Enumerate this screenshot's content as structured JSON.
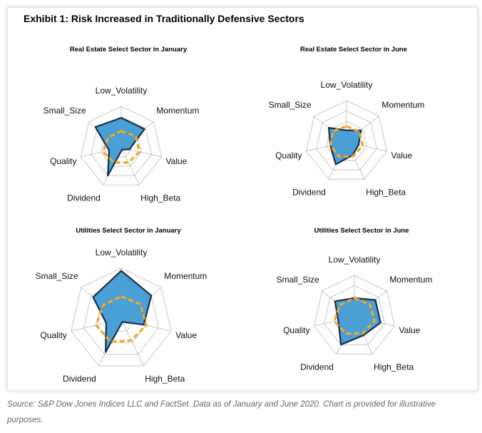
{
  "exhibit_title": "Exhibit 1: Risk Increased in Traditionally Defensive Sectors",
  "source_text": "Source: S&P Dow Jones Indices LLC and FactSet. Data as of January and June 2020. Chart is provided for illustrative purposes.",
  "colors": {
    "fill": "#4a9fd4",
    "outline": "#16314f",
    "benchmark": "#f5a623",
    "grid": "#c8c8c8"
  },
  "chart_data": [
    {
      "type": "radar",
      "title": "Real Estate Select Sector in January",
      "axes": [
        "Low_Volatility",
        "Momentum",
        "Value",
        "High_Beta",
        "Dividend",
        "Quality",
        "Small_Size"
      ],
      "series": [
        {
          "values": [
            0.72,
            0.72,
            0.2,
            0.05,
            0.75,
            0.3,
            0.8
          ]
        },
        {
          "values": [
            0.4,
            0.45,
            0.45,
            0.4,
            0.4,
            0.45,
            0.4
          ]
        }
      ],
      "ylim": [
        0,
        1
      ],
      "grid": true
    },
    {
      "type": "radar",
      "title": "Real Estate Select Sector in June",
      "axes": [
        "Low_Volatility",
        "Momentum",
        "Value",
        "High_Beta",
        "Dividend",
        "Quality",
        "Small_Size"
      ],
      "series": [
        {
          "values": [
            0.28,
            0.45,
            0.3,
            0.35,
            0.6,
            0.4,
            0.55
          ]
        },
        {
          "values": [
            0.38,
            0.4,
            0.4,
            0.38,
            0.4,
            0.4,
            0.42
          ]
        }
      ],
      "ylim": [
        0,
        1
      ],
      "grid": true
    },
    {
      "type": "radar",
      "title": "Utilities Select Sector in January",
      "axes": [
        "Low_Volatility",
        "Momentum",
        "Value",
        "High_Beta",
        "Dividend",
        "Quality",
        "Small_Size"
      ],
      "series": [
        {
          "values": [
            0.95,
            0.75,
            0.45,
            0.05,
            0.7,
            0.3,
            0.7
          ]
        },
        {
          "values": [
            0.45,
            0.48,
            0.5,
            0.45,
            0.48,
            0.5,
            0.45
          ]
        }
      ],
      "ylim": [
        0,
        1
      ],
      "grid": true
    },
    {
      "type": "radar",
      "title": "Utilities Select Sector in June",
      "axes": [
        "Low_Volatility",
        "Momentum",
        "Value",
        "High_Beta",
        "Dividend",
        "Quality",
        "Small_Size"
      ],
      "series": [
        {
          "values": [
            0.45,
            0.65,
            0.65,
            0.5,
            0.75,
            0.4,
            0.6
          ]
        },
        {
          "values": [
            0.45,
            0.48,
            0.5,
            0.45,
            0.45,
            0.5,
            0.45
          ]
        }
      ],
      "ylim": [
        0,
        1
      ],
      "grid": true
    }
  ]
}
